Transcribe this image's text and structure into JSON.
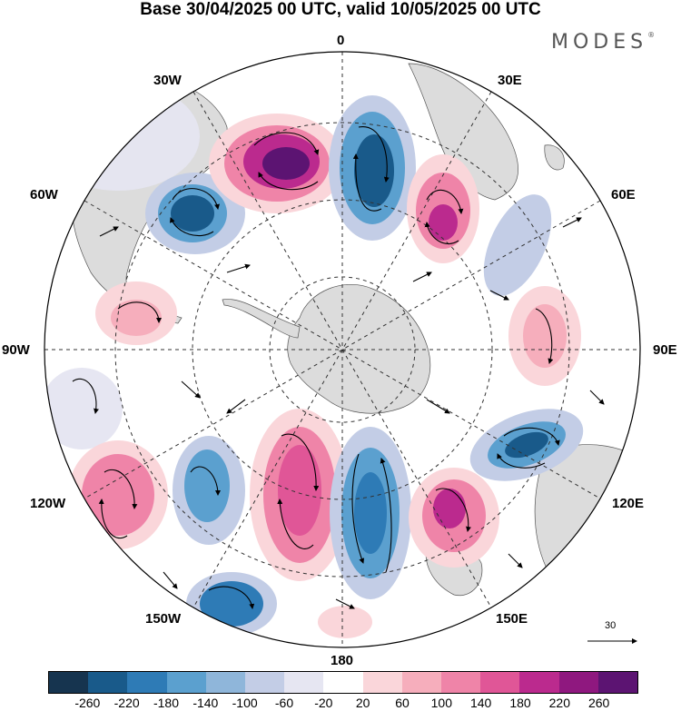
{
  "title": "Base 30/04/2025 00 UTC, valid 10/05/2025 00 UTC",
  "brand": {
    "name": "MODES",
    "mark": "®"
  },
  "map": {
    "projection": "south-polar-stereographic",
    "longitude_labels": {
      "lon_0": "0",
      "lon_30e": "30E",
      "lon_60e": "60E",
      "lon_90e": "90E",
      "lon_120e": "120E",
      "lon_150e": "150E",
      "lon_180": "180",
      "lon_150w": "150W",
      "lon_120w": "120W",
      "lon_90w": "90W",
      "lon_60w": "60W",
      "lon_30w": "30W"
    },
    "reference_vector": {
      "value": "30"
    }
  },
  "colorbar": {
    "colors": [
      "#16344f",
      "#195a8a",
      "#2e7bb6",
      "#5ba0cf",
      "#8fb6da",
      "#c3cde6",
      "#e6e6f2",
      "#ffffff",
      "#fad6da",
      "#f6aebc",
      "#ef84a8",
      "#e05697",
      "#bb2a8e",
      "#8f187f",
      "#5c1472"
    ],
    "tick_labels": [
      "-260",
      "-220",
      "-180",
      "-140",
      "-100",
      "-60",
      "-20",
      "20",
      "60",
      "100",
      "140",
      "180",
      "220",
      "260"
    ]
  },
  "colors": {
    "land": "#dcdcdc",
    "coast": "#555555",
    "grid": "#333333"
  }
}
